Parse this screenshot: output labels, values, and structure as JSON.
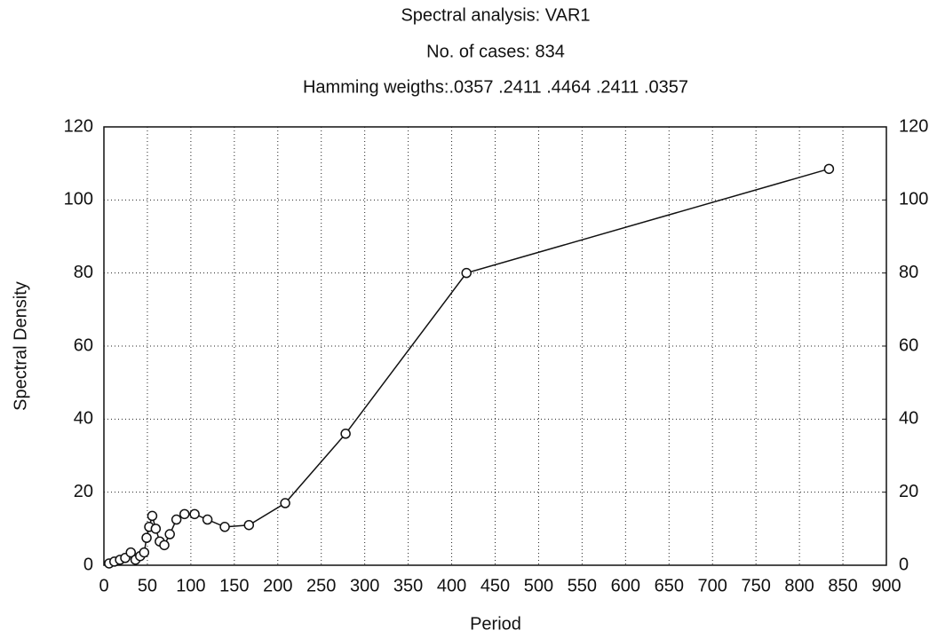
{
  "chart_data": {
    "type": "line",
    "title": "Spectral analysis: VAR1",
    "subtitle": "No. of cases: 834",
    "note": "Hamming weigths:.0357 .2411 .4464 .2411 .0357",
    "xlabel": "Period",
    "ylabel": "Spectral Density",
    "x": [
      6,
      12,
      18.5,
      24.5,
      30.9,
      36.3,
      41.7,
      46.3,
      49.1,
      52.1,
      55.6,
      59.6,
      64.2,
      69.5,
      75.8,
      83.4,
      92.7,
      104.3,
      119.1,
      139,
      166.8,
      208.5,
      278,
      417,
      834
    ],
    "series": [
      {
        "color": "#111111",
        "values": [
          0.5,
          1,
          1.5,
          2,
          3.5,
          1.5,
          2.5,
          3.5,
          7.5,
          10.5,
          13.5,
          10,
          6.5,
          5.5,
          8.5,
          12.5,
          14,
          14,
          12.5,
          10.5,
          11,
          17,
          36,
          80,
          108.5
        ]
      }
    ],
    "xlim": [
      0,
      900
    ],
    "xticks": [
      0,
      50,
      100,
      150,
      200,
      250,
      300,
      350,
      400,
      450,
      500,
      550,
      600,
      650,
      700,
      750,
      800,
      850,
      900
    ],
    "ylim": [
      0,
      120
    ],
    "yticks": [
      0,
      20,
      40,
      60,
      80,
      100,
      120
    ],
    "y2lim": [
      0,
      120
    ],
    "y2ticks": [
      0,
      20,
      40,
      60,
      80,
      100,
      120
    ],
    "grid": true,
    "markers": "open-circle"
  }
}
